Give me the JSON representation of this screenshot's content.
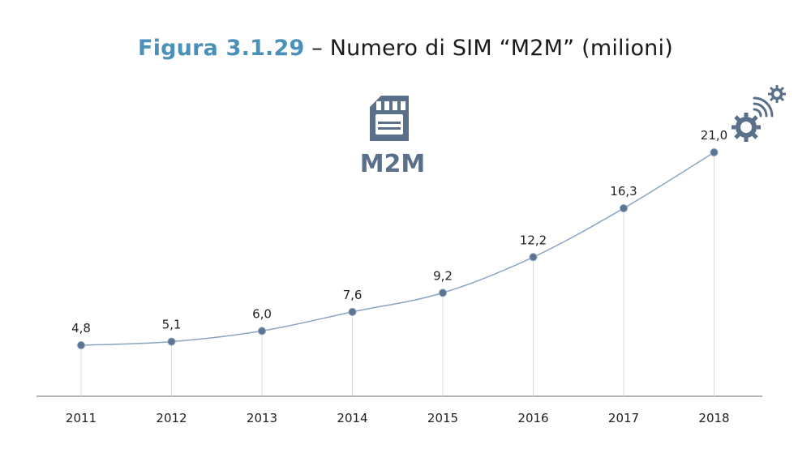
{
  "title": {
    "figure_label": "Figura 3.1.29",
    "separator": " – ",
    "text": "Numero di SIM “M2M” (milioni)"
  },
  "icon_label": "M2M",
  "colors": {
    "title_accent": "#4a90b8",
    "line": "#8aa4c0",
    "marker": "#5b7494",
    "icon": "#5a6f8a",
    "axis": "#9a9a9a",
    "dropline": "#dcdcdc"
  },
  "icons": [
    "sim-card-icon",
    "gear-wireless-icon"
  ],
  "chart_data": {
    "type": "line",
    "categories": [
      "2011",
      "2012",
      "2013",
      "2014",
      "2015",
      "2016",
      "2017",
      "2018"
    ],
    "values": [
      4.8,
      5.1,
      6.0,
      7.6,
      9.2,
      12.2,
      16.3,
      21.0
    ],
    "data_labels": [
      "4,8",
      "5,1",
      "6,0",
      "7,6",
      "9,2",
      "12,2",
      "16,3",
      "21,0"
    ],
    "title": "Numero di SIM “M2M” (milioni)",
    "xlabel": "",
    "ylabel": "",
    "grid": false,
    "markers": true
  }
}
